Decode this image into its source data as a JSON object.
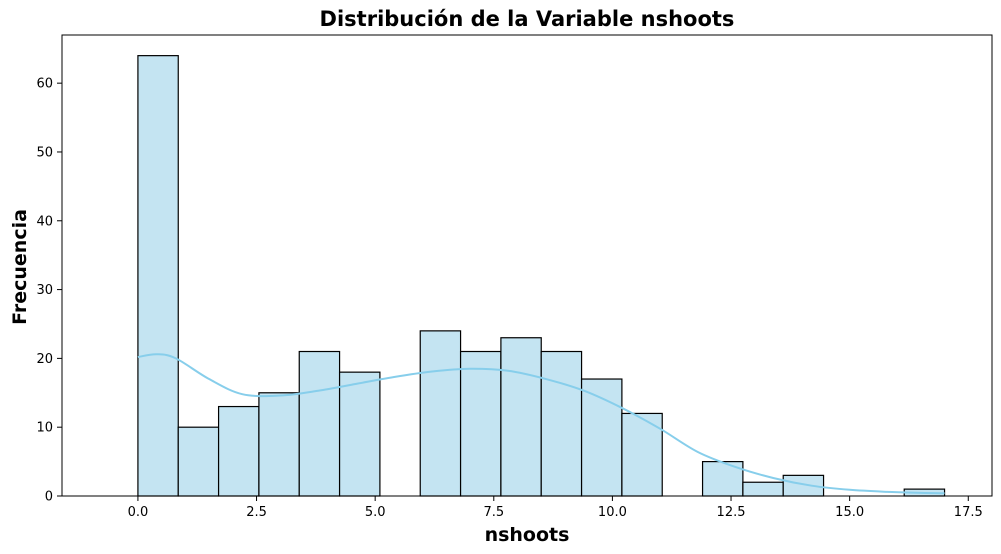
{
  "chart_data": {
    "type": "bar",
    "title": "Distribución de la Variable nshoots",
    "xlabel": "nshoots",
    "ylabel": "Frecuencia",
    "xlim": [
      -1.6,
      18.0
    ],
    "ylim": [
      0,
      67
    ],
    "xticks": [
      0.0,
      2.5,
      5.0,
      7.5,
      10.0,
      12.5,
      15.0,
      17.5
    ],
    "xtick_labels": [
      "0.0",
      "2.5",
      "5.0",
      "7.5",
      "10.0",
      "12.5",
      "15.0",
      "17.5"
    ],
    "yticks": [
      0,
      10,
      20,
      30,
      40,
      50,
      60
    ],
    "ytick_labels": [
      "0",
      "10",
      "20",
      "30",
      "40",
      "50",
      "60"
    ],
    "bin_edges": [
      0.0,
      0.85,
      1.7,
      2.55,
      3.4,
      4.25,
      5.1,
      5.95,
      6.8,
      7.65,
      8.5,
      9.35,
      10.2,
      11.05,
      11.9,
      12.75,
      13.6,
      14.45,
      15.3,
      16.15,
      17.0
    ],
    "counts": [
      64,
      10,
      13,
      15,
      21,
      18,
      0,
      24,
      21,
      23,
      21,
      17,
      12,
      0,
      5,
      2,
      3,
      0,
      0,
      1
    ],
    "kde": {
      "x": [
        0.0,
        0.4,
        0.8,
        1.5,
        2.2,
        3.0,
        3.8,
        4.6,
        5.4,
        6.2,
        7.0,
        7.8,
        8.6,
        9.4,
        10.2,
        11.0,
        11.8,
        12.6,
        13.4,
        14.2,
        15.0,
        15.8,
        16.5,
        17.0
      ],
      "y": [
        20.2,
        20.6,
        20.0,
        17.0,
        14.8,
        14.6,
        15.3,
        16.3,
        17.3,
        18.1,
        18.5,
        18.2,
        17.0,
        15.3,
        12.8,
        9.8,
        6.4,
        4.2,
        2.6,
        1.5,
        0.9,
        0.6,
        0.45,
        0.4
      ]
    },
    "grid": false,
    "colors": {
      "bar_fill": "#c4e4f2",
      "bar_edge": "#000000",
      "kde_line": "#87ceeb"
    }
  }
}
